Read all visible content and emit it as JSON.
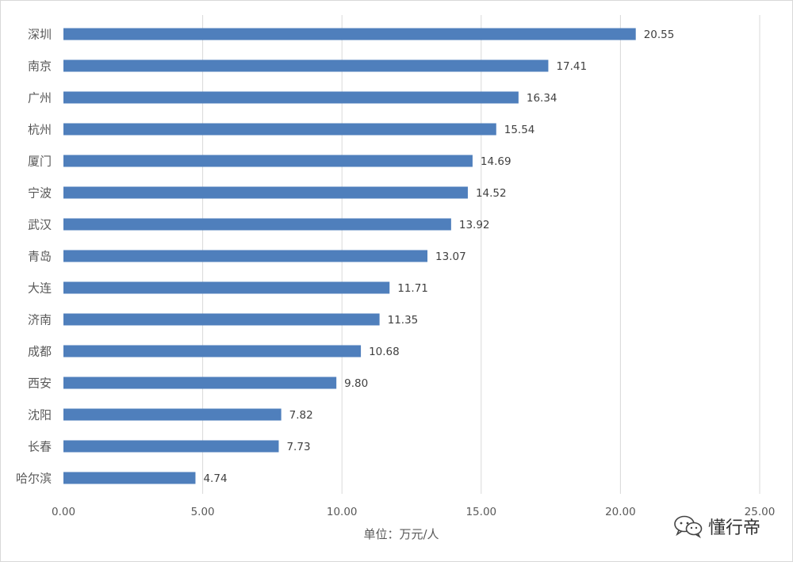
{
  "chart_data": {
    "type": "bar",
    "orientation": "horizontal",
    "categories": [
      "深圳",
      "南京",
      "广州",
      "杭州",
      "厦门",
      "宁波",
      "武汉",
      "青岛",
      "大连",
      "济南",
      "成都",
      "西安",
      "沈阳",
      "长春",
      "哈尔滨"
    ],
    "values": [
      20.55,
      17.41,
      16.34,
      15.54,
      14.69,
      14.52,
      13.92,
      13.07,
      11.71,
      11.35,
      10.68,
      9.8,
      7.82,
      7.73,
      4.74
    ],
    "value_labels": [
      "20.55",
      "17.41",
      "16.34",
      "15.54",
      "14.69",
      "14.52",
      "13.92",
      "13.07",
      "11.71",
      "11.35",
      "10.68",
      "9.80",
      "7.82",
      "7.73",
      "4.74"
    ],
    "xlim": [
      0,
      25
    ],
    "x_ticks": [
      "0.00",
      "5.00",
      "10.00",
      "15.00",
      "20.00",
      "25.00"
    ],
    "xlabel": "单位：万元/人",
    "ylabel": "",
    "title": "",
    "grid": "vertical",
    "legend": "none",
    "bar_color": "#4f7fbc",
    "gridline_color": "#d9d9d9"
  },
  "watermark": {
    "text": "懂行帝",
    "icon": "wechat-icon"
  }
}
